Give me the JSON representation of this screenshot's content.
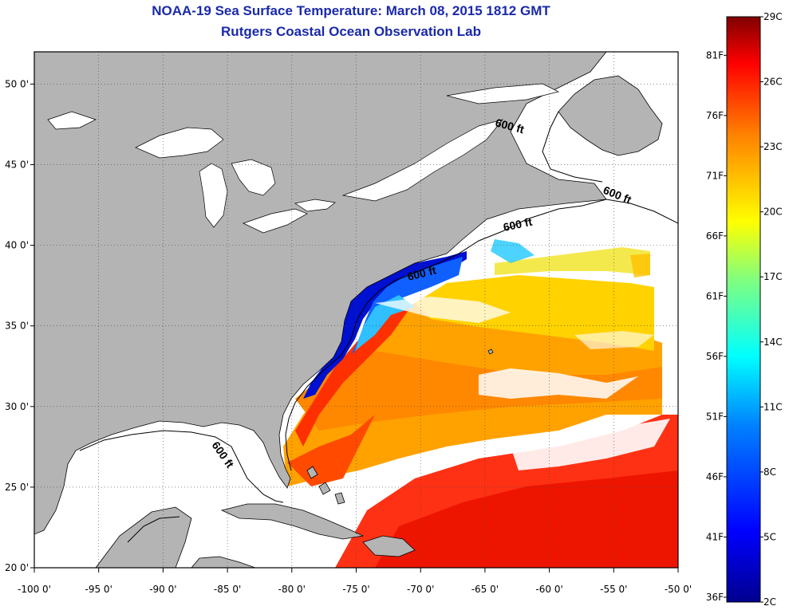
{
  "header": {
    "title": "NOAA-19 Sea Surface Temperature:  March 08, 2015 1812 GMT",
    "subtitle": "Rutgers Coastal Ocean Observation Lab"
  },
  "map": {
    "lon_range": [
      -100,
      -50
    ],
    "lat_range": [
      20,
      52
    ],
    "lon_ticks": [
      "-100 0'",
      "-95 0'",
      "-90 0'",
      "-85 0'",
      "-80 0'",
      "-75 0'",
      "-70 0'",
      "-65 0'",
      "-60 0'",
      "-55 0'",
      "-50 0'"
    ],
    "lat_ticks": [
      "50 0'",
      "45 0'",
      "40 0'",
      "35 0'",
      "30 0'",
      "25 0'",
      "20 0'"
    ],
    "contour_labels": [
      "600 ft",
      "600 ft",
      "600 ft",
      "600 ft",
      "600 ft"
    ],
    "colors": {
      "land": "#b4b4b4",
      "no_data": "#ffffff",
      "coast": "#000000"
    }
  },
  "colorbar": {
    "celsius_labels": [
      "29C",
      "26C",
      "23C",
      "20C",
      "17C",
      "14C",
      "11C",
      "8C",
      "5C",
      "2C"
    ],
    "fahrenheit_labels": [
      "81F",
      "76F",
      "71F",
      "66F",
      "61F",
      "56F",
      "51F",
      "46F",
      "41F",
      "36F"
    ],
    "range_c": [
      2,
      29
    ],
    "stops": [
      "#00008f",
      "#0000ff",
      "#0080ff",
      "#00ffff",
      "#80ff80",
      "#ffff00",
      "#ff8000",
      "#ff0000",
      "#800000"
    ]
  }
}
